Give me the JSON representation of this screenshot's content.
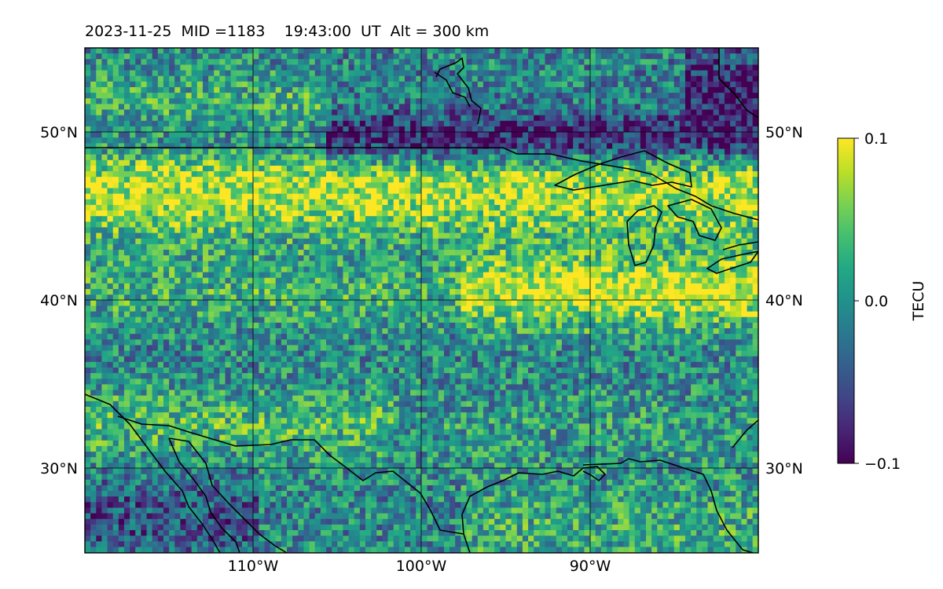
{
  "title": {
    "date": "2023-11-25",
    "mid": "MID =1183",
    "time": "19:43:00  UT",
    "alt": "Alt = 300 km"
  },
  "map": {
    "lon_range": [
      -120,
      -80
    ],
    "lat_range": [
      25,
      55
    ],
    "lon_ticks": [
      "110°W",
      "100°W",
      "90°W"
    ],
    "lat_ticks_left": [
      "50°N",
      "40°N",
      "30°N"
    ],
    "lat_ticks_right": [
      "50°N",
      "40°N",
      "30°N"
    ],
    "gridlines": true,
    "coastlines": true
  },
  "colorbar": {
    "label": "TECU",
    "ticks": [
      "0.1",
      "0.0",
      "−0.1"
    ],
    "colormap": "viridis",
    "range": [
      -0.1,
      0.1
    ]
  },
  "colors": {
    "viridis_low": "#440154",
    "viridis_mid": "#21918c",
    "viridis_high": "#fde725"
  }
}
